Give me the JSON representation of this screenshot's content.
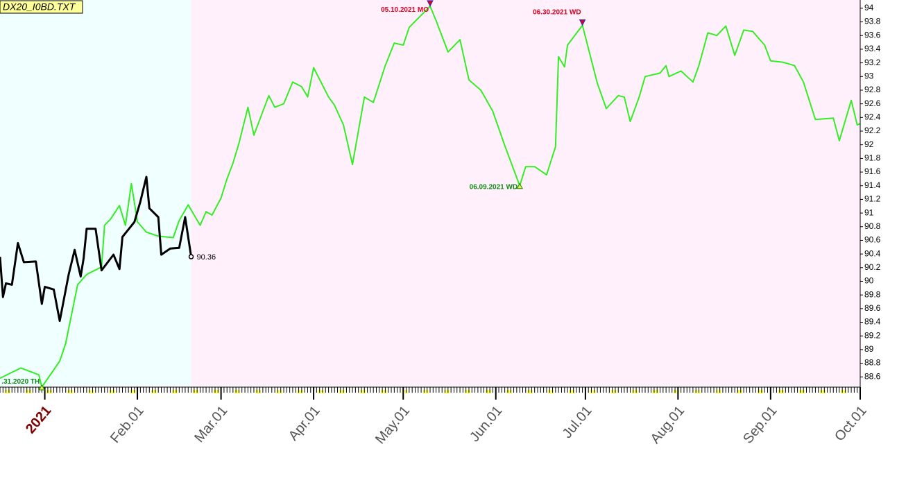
{
  "chart_data": {
    "type": "line",
    "title": "DX20_I0BD.TXT",
    "xlim": [
      "2020-12-17",
      "2021-10-01"
    ],
    "ylim": [
      88.45,
      94.07
    ],
    "yticks": [
      88.6,
      88.8,
      89,
      89.2,
      89.4,
      89.6,
      89.8,
      90,
      90.2,
      90.4,
      90.6,
      90.8,
      91,
      91.2,
      91.4,
      91.6,
      91.8,
      92,
      92.2,
      92.4,
      92.6,
      92.8,
      93,
      93.2,
      93.4,
      93.6,
      93.8,
      94
    ],
    "xticks": [
      {
        "value": "2021-01-01",
        "label": "2021"
      },
      {
        "value": "2021-02-01",
        "label": "Feb.01"
      },
      {
        "value": "2021-03-01",
        "label": "Mar.01"
      },
      {
        "value": "2021-04-01",
        "label": "Apr.01"
      },
      {
        "value": "2021-05-01",
        "label": "May.01"
      },
      {
        "value": "2021-06-01",
        "label": "Jun.01"
      },
      {
        "value": "2021-07-01",
        "label": "Jul.01"
      },
      {
        "value": "2021-08-01",
        "label": "Aug.01"
      },
      {
        "value": "2021-09-01",
        "label": "Sep.01"
      },
      {
        "value": "2021-10-01",
        "label": "Oct.01"
      }
    ],
    "regions": [
      {
        "from": "2020-12-17",
        "to": "2021-02-19",
        "color": "#f0ffff"
      },
      {
        "from": "2021-02-19",
        "to": "2021-10-01",
        "color": "#fff0fc"
      }
    ],
    "series": [
      {
        "color": "#33ee22",
        "end_marker": false,
        "x": [
          "2020-12-17",
          "2020-12-24",
          "2020-12-30",
          "2020-12-31",
          "2021-01-06",
          "2021-01-08",
          "2021-01-12",
          "2021-01-15",
          "2021-01-20",
          "2021-01-21",
          "2021-01-23",
          "2021-01-26",
          "2021-01-28",
          "2021-01-30",
          "2021-02-01",
          "2021-02-04",
          "2021-02-08",
          "2021-02-13",
          "2021-02-15",
          "2021-02-18",
          "2021-02-22",
          "2021-02-24",
          "2021-02-26",
          "2021-03-01",
          "2021-03-03",
          "2021-03-05",
          "2021-03-07",
          "2021-03-10",
          "2021-03-12",
          "2021-03-17",
          "2021-03-19",
          "2021-03-22",
          "2021-03-25",
          "2021-03-28",
          "2021-03-30",
          "2021-04-01",
          "2021-04-06",
          "2021-04-08",
          "2021-04-11",
          "2021-04-14",
          "2021-04-18",
          "2021-04-21",
          "2021-04-25",
          "2021-04-28",
          "2021-05-01",
          "2021-05-03",
          "2021-05-10",
          "2021-05-12",
          "2021-05-16",
          "2021-05-20",
          "2021-05-23",
          "2021-05-27",
          "2021-05-31",
          "2021-06-04",
          "2021-06-09",
          "2021-06-11",
          "2021-06-14",
          "2021-06-18",
          "2021-06-21",
          "2021-06-22",
          "2021-06-24",
          "2021-06-25",
          "2021-06-30",
          "2021-07-05",
          "2021-07-08",
          "2021-07-12",
          "2021-07-14",
          "2021-07-16",
          "2021-07-19",
          "2021-07-21",
          "2021-07-26",
          "2021-07-28",
          "2021-07-29",
          "2021-08-02",
          "2021-08-06",
          "2021-08-08",
          "2021-08-11",
          "2021-08-14",
          "2021-08-17",
          "2021-08-20",
          "2021-08-23",
          "2021-08-26",
          "2021-08-30",
          "2021-09-01",
          "2021-09-05",
          "2021-09-09",
          "2021-09-12",
          "2021-09-16",
          "2021-09-22",
          "2021-09-24",
          "2021-09-28",
          "2021-09-30",
          "2021-10-01"
        ],
        "values": [
          88.58,
          88.73,
          88.63,
          88.45,
          88.83,
          89.09,
          89.95,
          90.1,
          90.21,
          90.82,
          90.91,
          91.11,
          90.82,
          91.43,
          90.87,
          90.72,
          90.66,
          90.64,
          90.89,
          91.12,
          90.82,
          91.02,
          90.97,
          91.22,
          91.5,
          91.73,
          92.02,
          92.55,
          92.14,
          92.72,
          92.55,
          92.6,
          92.92,
          92.85,
          92.7,
          93.13,
          92.7,
          92.58,
          92.29,
          91.71,
          92.7,
          92.62,
          93.16,
          93.49,
          93.46,
          93.72,
          94.03,
          93.82,
          93.36,
          93.54,
          92.95,
          92.8,
          92.49,
          91.99,
          91.4,
          91.68,
          91.68,
          91.56,
          91.97,
          93.29,
          93.14,
          93.46,
          93.75,
          92.9,
          92.53,
          92.72,
          92.7,
          92.34,
          92.7,
          93,
          93.05,
          93.16,
          93,
          93.08,
          92.92,
          93.16,
          93.64,
          93.6,
          93.74,
          93.31,
          93.68,
          93.66,
          93.46,
          93.23,
          93.21,
          93.16,
          92.92,
          92.37,
          92.39,
          92.06,
          92.65,
          92.29,
          92.31
        ]
      },
      {
        "color": "#000000",
        "end_marker": true,
        "x": [
          "2020-12-17",
          "2020-12-18",
          "2020-12-19",
          "2020-12-21",
          "2020-12-23",
          "2020-12-25",
          "2020-12-29",
          "2020-12-31",
          "2021-01-01",
          "2021-01-04",
          "2021-01-06",
          "2021-01-09",
          "2021-01-11",
          "2021-01-13",
          "2021-01-14",
          "2021-01-15",
          "2021-01-18",
          "2021-01-20",
          "2021-01-24",
          "2021-01-26",
          "2021-01-27",
          "2021-01-31",
          "2021-02-02",
          "2021-02-04",
          "2021-02-05",
          "2021-02-08",
          "2021-02-09",
          "2021-02-12",
          "2021-02-15",
          "2021-02-17",
          "2021-02-19"
        ],
        "values": [
          90.36,
          89.77,
          89.97,
          89.95,
          90.56,
          90.28,
          90.29,
          89.67,
          89.92,
          89.88,
          89.42,
          90.1,
          90.46,
          90.07,
          90.34,
          90.77,
          90.77,
          90.16,
          90.39,
          90.18,
          90.65,
          90.87,
          91.17,
          91.53,
          91.07,
          90.94,
          90.39,
          90.48,
          90.49,
          90.94,
          90.36
        ]
      }
    ],
    "annotations": [
      {
        "text": "05.10.2021 MO",
        "x": "2021-05-10",
        "y": 94.03,
        "color": "#e00020",
        "marker": "down"
      },
      {
        "text": "06.30.2021 WD",
        "x": "2021-06-30",
        "y": 93.75,
        "color": "#e00020",
        "marker": "down"
      },
      {
        "text": "06.09.2021 WD",
        "x": "2021-06-09",
        "y": 91.4,
        "color": "#118811",
        "marker": "up"
      },
      {
        "text": ".31.2020 TH",
        "x": "2020-12-31",
        "y": 88.45,
        "color": "#118811",
        "marker": "up"
      }
    ]
  }
}
